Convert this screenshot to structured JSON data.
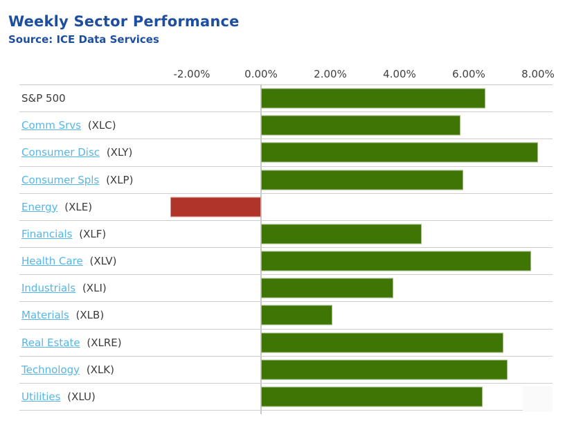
{
  "header": {
    "title": "Weekly Sector Performance",
    "subtitle": "Source: ICE Data Services"
  },
  "chart_data": {
    "type": "bar",
    "orientation": "horizontal",
    "axis_position": "top",
    "grid": "horizontal-row-lines",
    "legend": "none",
    "x_ticks": [
      {
        "label": "-2.00%",
        "value": -2
      },
      {
        "label": "0.00%",
        "value": 0
      },
      {
        "label": "2.00%",
        "value": 2
      },
      {
        "label": "4.00%",
        "value": 4
      },
      {
        "label": "6.00%",
        "value": 6
      },
      {
        "label": "8.00%",
        "value": 8
      }
    ],
    "x_tick_range": [
      -2,
      8
    ],
    "categories": [
      {
        "label": "S&P 500",
        "ticker": "",
        "linked": false
      },
      {
        "label": "Comm Srvs",
        "ticker": "(XLC)",
        "linked": true
      },
      {
        "label": "Consumer Disc",
        "ticker": "(XLY)",
        "linked": true
      },
      {
        "label": "Consumer Spls",
        "ticker": "(XLP)",
        "linked": true
      },
      {
        "label": "Energy",
        "ticker": "(XLE)",
        "linked": true
      },
      {
        "label": "Financials",
        "ticker": "(XLF)",
        "linked": true
      },
      {
        "label": "Health Care",
        "ticker": "(XLV)",
        "linked": true
      },
      {
        "label": "Industrials",
        "ticker": "(XLI)",
        "linked": true
      },
      {
        "label": "Materials",
        "ticker": "(XLB)",
        "linked": true
      },
      {
        "label": "Real Estate",
        "ticker": "(XLRE)",
        "linked": true
      },
      {
        "label": "Technology",
        "ticker": "(XLK)",
        "linked": true
      },
      {
        "label": "Utilities",
        "ticker": "(XLU)",
        "linked": true
      }
    ],
    "values": [
      6.48,
      5.76,
      7.99,
      5.84,
      -2.62,
      4.64,
      7.79,
      3.82,
      2.06,
      7.0,
      7.12,
      6.39
    ],
    "value_unit": "%",
    "colors": {
      "positive": "#3f7505",
      "negative": "#b0342a",
      "title": "#1e4e9e",
      "link": "#54b6e8",
      "label": "#3b3b3b",
      "gridline": "#cecece"
    }
  }
}
